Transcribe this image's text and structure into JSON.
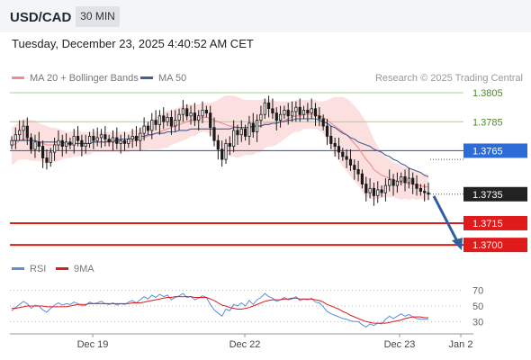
{
  "header": {
    "symbol": "USD/CAD",
    "timeframe": "30 MIN",
    "datetime": "Tuesday, December 23, 2025 4:40:52 AM CET"
  },
  "legend": {
    "ma20": "MA 20 + Bollinger Bands",
    "ma50": "MA 50",
    "copyright": "Research © 2025 Trading Central"
  },
  "colors": {
    "ma20": "#f08c8c",
    "ma50": "#3f5f96",
    "resistance": "#a8d08d",
    "resistance_text": "#4b8a2b",
    "pivot": "#2d6cd6",
    "support": "#e01b1b",
    "band_fill": "#fbdada",
    "candle": "#1a1a1a",
    "rsi": "#5b8ed8",
    "rsi_ma": "#e01b1b",
    "arrow": "#2f5f9e"
  },
  "chart_data": [
    {
      "type": "candlestick",
      "title": "USD/CAD",
      "timeframe": "30 MIN",
      "x_ticks": [
        "Dec 19",
        "Dec 22",
        "Dec 23",
        "Jan 2"
      ],
      "ylim": [
        1.3692,
        1.381
      ],
      "levels": [
        {
          "value": 1.3805,
          "label": "1.3805",
          "kind": "resistance"
        },
        {
          "value": 1.3785,
          "label": "1.3785",
          "kind": "resistance"
        },
        {
          "value": 1.3765,
          "label": "1.3765",
          "kind": "pivot"
        },
        {
          "value": 1.3735,
          "label": "1.3735",
          "kind": "last"
        },
        {
          "value": 1.3715,
          "label": "1.3715",
          "kind": "support"
        },
        {
          "value": 1.37,
          "label": "1.3700",
          "kind": "support"
        }
      ],
      "close": [
        1.3772,
        1.3776,
        1.3779,
        1.3782,
        1.3774,
        1.3766,
        1.3771,
        1.3768,
        1.376,
        1.3757,
        1.3764,
        1.3769,
        1.3772,
        1.3768,
        1.3771,
        1.3769,
        1.3775,
        1.3772,
        1.3768,
        1.377,
        1.3775,
        1.3772,
        1.3774,
        1.3776,
        1.3773,
        1.3771,
        1.3774,
        1.377,
        1.3772,
        1.377,
        1.3773,
        1.3775,
        1.3772,
        1.3777,
        1.3782,
        1.3779,
        1.3786,
        1.3783,
        1.3789,
        1.3785,
        1.3788,
        1.3782,
        1.3786,
        1.379,
        1.3794,
        1.3789,
        1.3791,
        1.3786,
        1.3789,
        1.3793,
        1.3791,
        1.3781,
        1.3772,
        1.3766,
        1.3759,
        1.377,
        1.3768,
        1.3779,
        1.3776,
        1.378,
        1.3775,
        1.3784,
        1.3778,
        1.3786,
        1.379,
        1.3798,
        1.3794,
        1.3791,
        1.3786,
        1.379,
        1.3793,
        1.3789,
        1.3792,
        1.3795,
        1.379,
        1.3793,
        1.3791,
        1.3794,
        1.3789,
        1.3787,
        1.3782,
        1.3775,
        1.377,
        1.3768,
        1.3764,
        1.3761,
        1.3759,
        1.3755,
        1.3752,
        1.3749,
        1.3742,
        1.3736,
        1.3739,
        1.3734,
        1.3738,
        1.3736,
        1.3741,
        1.3745,
        1.3741,
        1.3744,
        1.3747,
        1.3743,
        1.3746,
        1.3742,
        1.3739,
        1.3737,
        1.3736,
        1.3735
      ],
      "ma20": [
        1.3768,
        1.377,
        1.3772,
        1.3773,
        1.3773,
        1.3772,
        1.3772,
        1.3771,
        1.377,
        1.3769,
        1.3769,
        1.3769,
        1.3769,
        1.3769,
        1.3769,
        1.3769,
        1.377,
        1.377,
        1.377,
        1.377,
        1.377,
        1.3771,
        1.3771,
        1.3771,
        1.3771,
        1.3771,
        1.3771,
        1.3771,
        1.3771,
        1.3771,
        1.3771,
        1.3772,
        1.3772,
        1.3773,
        1.3774,
        1.3775,
        1.3776,
        1.3777,
        1.3778,
        1.3779,
        1.378,
        1.3781,
        1.3782,
        1.3783,
        1.3784,
        1.3785,
        1.3786,
        1.3786,
        1.3787,
        1.3788,
        1.3788,
        1.3787,
        1.3786,
        1.3785,
        1.3784,
        1.3783,
        1.3782,
        1.3782,
        1.3781,
        1.3781,
        1.3781,
        1.3781,
        1.3781,
        1.3782,
        1.3782,
        1.3784,
        1.3784,
        1.3784,
        1.3784,
        1.3785,
        1.3786,
        1.3787,
        1.3788,
        1.3789,
        1.3789,
        1.379,
        1.379,
        1.379,
        1.379,
        1.3789,
        1.3788,
        1.3786,
        1.3784,
        1.3782,
        1.378,
        1.3778,
        1.3776,
        1.3773,
        1.377,
        1.3767,
        1.3763,
        1.3759,
        1.3756,
        1.3752,
        1.375,
        1.3748,
        1.3747,
        1.3746,
        1.3745,
        1.3744,
        1.3743,
        1.3743,
        1.3742,
        1.3742,
        1.3741,
        1.3741,
        1.374,
        1.374
      ],
      "bb_upper": [
        1.3781,
        1.3783,
        1.3785,
        1.3787,
        1.3787,
        1.3786,
        1.3786,
        1.3784,
        1.3783,
        1.3782,
        1.3781,
        1.3781,
        1.378,
        1.3779,
        1.3778,
        1.3778,
        1.3779,
        1.3779,
        1.3778,
        1.3778,
        1.3778,
        1.3778,
        1.3778,
        1.3778,
        1.3778,
        1.3778,
        1.3778,
        1.3778,
        1.3778,
        1.3778,
        1.3778,
        1.3779,
        1.3779,
        1.3781,
        1.3783,
        1.3784,
        1.3786,
        1.3788,
        1.379,
        1.3791,
        1.3793,
        1.3793,
        1.3794,
        1.3795,
        1.3796,
        1.3797,
        1.3797,
        1.3797,
        1.3797,
        1.3798,
        1.3798,
        1.3798,
        1.3799,
        1.38,
        1.3802,
        1.3803,
        1.3803,
        1.3803,
        1.3802,
        1.3801,
        1.38,
        1.38,
        1.38,
        1.38,
        1.38,
        1.3801,
        1.38,
        1.38,
        1.3799,
        1.3799,
        1.3799,
        1.3799,
        1.3799,
        1.38,
        1.38,
        1.38,
        1.38,
        1.38,
        1.38,
        1.3799,
        1.3799,
        1.38,
        1.3801,
        1.3802,
        1.3802,
        1.3802,
        1.3801,
        1.3799,
        1.3796,
        1.3793,
        1.3789,
        1.3785,
        1.3779,
        1.3773,
        1.3768,
        1.3764,
        1.3761,
        1.3759,
        1.3757,
        1.3756,
        1.3755,
        1.3754,
        1.3753,
        1.3752,
        1.3751,
        1.375,
        1.3749,
        1.3749
      ],
      "bb_lower": [
        1.3755,
        1.3757,
        1.3759,
        1.3759,
        1.3759,
        1.3758,
        1.3758,
        1.3758,
        1.3757,
        1.3756,
        1.3757,
        1.3757,
        1.3758,
        1.3759,
        1.376,
        1.376,
        1.3761,
        1.3761,
        1.3762,
        1.3762,
        1.3762,
        1.3764,
        1.3764,
        1.3764,
        1.3764,
        1.3764,
        1.3764,
        1.3764,
        1.3764,
        1.3764,
        1.3764,
        1.3765,
        1.3765,
        1.3765,
        1.3765,
        1.3766,
        1.3766,
        1.3766,
        1.3766,
        1.3767,
        1.3767,
        1.3769,
        1.377,
        1.3771,
        1.3772,
        1.3773,
        1.3775,
        1.3775,
        1.3777,
        1.3778,
        1.3778,
        1.3776,
        1.3773,
        1.377,
        1.3766,
        1.3763,
        1.3761,
        1.3761,
        1.376,
        1.3761,
        1.3762,
        1.3762,
        1.3762,
        1.3764,
        1.3764,
        1.3767,
        1.3768,
        1.3768,
        1.3769,
        1.3771,
        1.3773,
        1.3775,
        1.3777,
        1.3778,
        1.3778,
        1.378,
        1.378,
        1.378,
        1.378,
        1.3779,
        1.3777,
        1.3772,
        1.3767,
        1.3762,
        1.3758,
        1.3754,
        1.3751,
        1.3747,
        1.3744,
        1.3741,
        1.3737,
        1.3733,
        1.3733,
        1.3731,
        1.3732,
        1.3732,
        1.3733,
        1.3733,
        1.3733,
        1.3732,
        1.3731,
        1.3732,
        1.3731,
        1.3732,
        1.3731,
        1.3732,
        1.3731,
        1.3731
      ],
      "ma50": [
        1.3772,
        1.3772,
        1.3772,
        1.3772,
        1.3772,
        1.3772,
        1.3772,
        1.3771,
        1.3771,
        1.3771,
        1.3771,
        1.3771,
        1.3771,
        1.3771,
        1.377,
        1.377,
        1.377,
        1.377,
        1.377,
        1.377,
        1.377,
        1.3771,
        1.3771,
        1.3771,
        1.3771,
        1.3772,
        1.3772,
        1.3772,
        1.3773,
        1.3773,
        1.3773,
        1.3774,
        1.3774,
        1.3775,
        1.3775,
        1.3776,
        1.3776,
        1.3777,
        1.3777,
        1.3777,
        1.3778,
        1.3778,
        1.3778,
        1.3779,
        1.3779,
        1.3779,
        1.378,
        1.378,
        1.378,
        1.378,
        1.378,
        1.378,
        1.378,
        1.378,
        1.378,
        1.378,
        1.378,
        1.3781,
        1.3781,
        1.3781,
        1.3781,
        1.3781,
        1.3782,
        1.3782,
        1.3782,
        1.3783,
        1.3783,
        1.3784,
        1.3784,
        1.3785,
        1.3785,
        1.3786,
        1.3786,
        1.3787,
        1.3787,
        1.3787,
        1.3787,
        1.3787,
        1.3787,
        1.3786,
        1.3785,
        1.3784,
        1.3782,
        1.3781,
        1.3779,
        1.3777,
        1.3776,
        1.3774,
        1.3773,
        1.3771,
        1.377,
        1.3769,
        1.3768,
        1.3766,
        1.3765,
        1.3764,
        1.3762,
        1.3761,
        1.3759,
        1.3758,
        1.3756,
        1.3755,
        1.3753,
        1.3752,
        1.3751,
        1.375,
        1.3748,
        1.3747
      ],
      "forecast": {
        "from": 1.3735,
        "to": 1.37
      }
    },
    {
      "type": "line",
      "title": "RSI",
      "series_names": [
        "RSI",
        "9MA"
      ],
      "ylim": [
        20,
        80
      ],
      "y_ticks": [
        70,
        50,
        30
      ],
      "rsi": [
        44,
        48,
        52,
        56,
        53,
        47,
        51,
        50,
        45,
        42,
        47,
        51,
        54,
        51,
        53,
        52,
        55,
        53,
        50,
        51,
        55,
        53,
        54,
        56,
        53,
        52,
        54,
        51,
        53,
        52,
        55,
        57,
        54,
        58,
        62,
        59,
        64,
        61,
        65,
        62,
        64,
        58,
        61,
        63,
        66,
        61,
        62,
        58,
        60,
        63,
        61,
        52,
        45,
        41,
        37,
        46,
        44,
        52,
        50,
        54,
        50,
        57,
        52,
        58,
        61,
        66,
        62,
        60,
        56,
        58,
        61,
        58,
        59,
        62,
        57,
        59,
        58,
        60,
        55,
        54,
        49,
        43,
        40,
        38,
        36,
        34,
        33,
        31,
        30,
        30,
        26,
        23,
        27,
        25,
        28,
        27,
        33,
        37,
        34,
        37,
        40,
        37,
        39,
        36,
        34,
        33,
        33,
        33
      ],
      "rsi_ma": [
        47,
        47,
        48,
        49,
        50,
        50,
        50,
        50,
        50,
        49,
        49,
        49,
        49,
        49,
        49,
        50,
        51,
        52,
        52,
        52,
        53,
        53,
        53,
        53,
        53,
        53,
        53,
        53,
        53,
        53,
        53,
        54,
        54,
        54,
        55,
        56,
        57,
        58,
        59,
        60,
        61,
        61,
        62,
        62,
        62,
        62,
        62,
        61,
        61,
        61,
        61,
        59,
        57,
        54,
        51,
        50,
        48,
        47,
        46,
        46,
        47,
        48,
        50,
        52,
        54,
        56,
        57,
        58,
        58,
        58,
        59,
        59,
        60,
        60,
        59,
        59,
        59,
        59,
        58,
        57,
        55,
        52,
        50,
        48,
        46,
        43,
        41,
        38,
        36,
        34,
        32,
        30,
        29,
        28,
        28,
        28,
        28,
        29,
        30,
        31,
        32,
        34,
        35,
        36,
        36,
        36,
        35,
        35
      ]
    }
  ]
}
